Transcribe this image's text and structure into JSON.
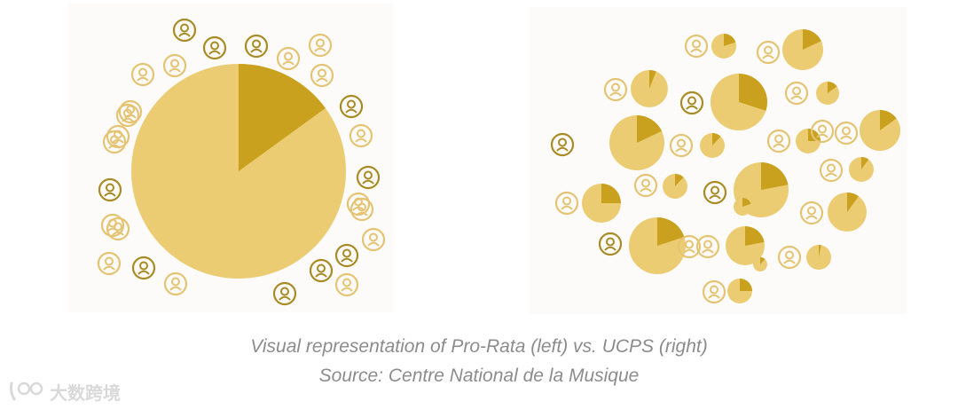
{
  "caption": {
    "line1": "Visual representation of Pro-Rata (left) vs. UCPS (right)",
    "line2": "Source: Centre National de la Musique"
  },
  "watermark": {
    "text": "大数跨境"
  },
  "colors": {
    "pie_light": "#eccc73",
    "pie_dark": "#caa11f",
    "icon_light": "#e4c473",
    "icon_dark": "#a88b25",
    "panel_bg": "#fcfbf9",
    "caption_text": "#8c8c8c"
  },
  "diagrams": {
    "pro_rata": {
      "pie_share": 0.15,
      "listener_icons": 28
    },
    "ucps": {
      "pie_shares": [
        0.2,
        0.18,
        0.06,
        0.3,
        0.15,
        0.18,
        0.12,
        0.25,
        0.15,
        0.1,
        0.12,
        0.22,
        0.25,
        0.1,
        0.2,
        0.22,
        0.03,
        0.25,
        0.2,
        0.12
      ],
      "listener_icons": 20
    }
  },
  "icon_name": "user-icon"
}
